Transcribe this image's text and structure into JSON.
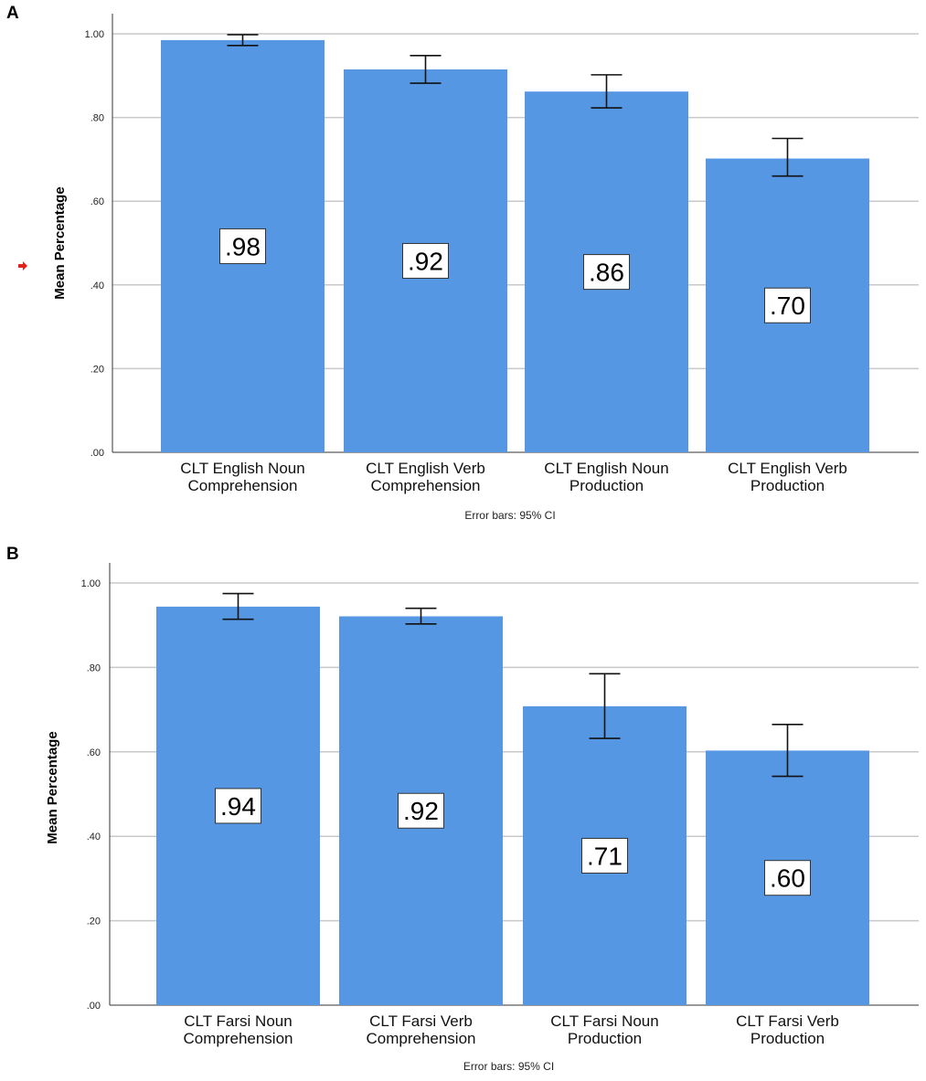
{
  "colors": {
    "bar": "#5597e3",
    "grid": "#c8c8c8",
    "axis": "#333333",
    "marker": "#e2231a"
  },
  "chart_data": [
    {
      "panel": "A",
      "type": "bar",
      "categories": [
        [
          "CLT English Noun",
          "Comprehension"
        ],
        [
          "CLT English Verb",
          "Comprehension"
        ],
        [
          "CLT English Noun",
          "Production"
        ],
        [
          "CLT English Verb",
          "Production"
        ]
      ],
      "values": [
        0.985,
        0.915,
        0.862,
        0.702
      ],
      "value_labels": [
        ".98",
        ".92",
        ".86",
        ".70"
      ],
      "ci_low": [
        0.972,
        0.882,
        0.823,
        0.66
      ],
      "ci_high": [
        0.998,
        0.948,
        0.902,
        0.75
      ],
      "ylabel": "Mean Percentage",
      "yticks": [
        ".00",
        ".20",
        ".40",
        ".60",
        ".80",
        "1.00"
      ],
      "ylim": [
        0,
        1.0
      ],
      "note": "Error bars: 95% CI",
      "grid": true
    },
    {
      "panel": "B",
      "type": "bar",
      "categories": [
        [
          "CLT Farsi Noun",
          "Comprehension"
        ],
        [
          "CLT Farsi Verb",
          "Comprehension"
        ],
        [
          "CLT Farsi Noun",
          "Production"
        ],
        [
          "CLT Farsi Verb",
          "Production"
        ]
      ],
      "values": [
        0.944,
        0.921,
        0.708,
        0.603
      ],
      "value_labels": [
        ".94",
        ".92",
        ".71",
        ".60"
      ],
      "ci_low": [
        0.914,
        0.903,
        0.632,
        0.542
      ],
      "ci_high": [
        0.975,
        0.94,
        0.785,
        0.665
      ],
      "ylabel": "Mean Percentage",
      "yticks": [
        ".00",
        ".20",
        ".40",
        ".60",
        ".80",
        "1.00"
      ],
      "ylim": [
        0,
        1.0
      ],
      "note": "Error bars: 95% CI",
      "grid": true
    }
  ]
}
